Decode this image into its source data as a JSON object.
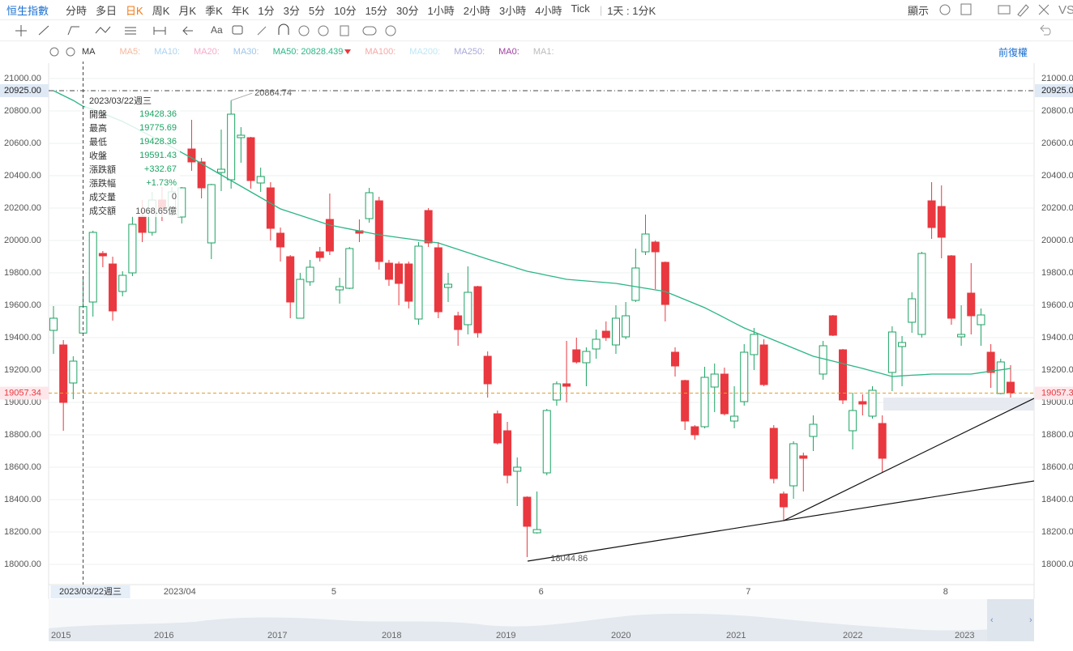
{
  "toolbar": {
    "symbol": "恒生指數",
    "periods": [
      "分時",
      "多日",
      "日K",
      "周K",
      "月K",
      "季K",
      "年K",
      "1分",
      "3分",
      "5分",
      "10分",
      "15分",
      "30分",
      "1小時",
      "2小時",
      "3小時",
      "4小時",
      "Tick"
    ],
    "selected_period": "日K",
    "interval": "1天 : 1分K",
    "display": "顯示",
    "compare": "VS",
    "text_tool": "Aa"
  },
  "indicator_label": "MA",
  "adjust": "前復權",
  "tooltip": {
    "labels": [
      "開盤",
      "最高",
      "最低",
      "收盤",
      "漲跌額",
      "漲跌幅",
      "成交量",
      "成交額"
    ],
    "change": "+332.67",
    "change_pct": "+1.73%",
    "volume": 0,
    "turnover": "1068.65億"
  },
  "navigator": {
    "years": [
      "2015",
      "2016",
      "2017",
      "2018",
      "2019",
      "2020",
      "2021",
      "2022",
      "2023"
    ]
  },
  "chart_data": {
    "type": "candlestick",
    "up_color": "#1ca363",
    "down_color": "#e9383f",
    "categories": [
      null,
      null,
      null,
      "2023/03/22週三",
      null,
      null,
      null,
      null,
      null,
      null,
      null,
      "2023/04",
      null,
      null,
      null,
      null,
      null,
      null,
      null,
      null,
      null,
      null,
      null,
      null,
      null,
      null,
      null,
      null,
      "5",
      null,
      null,
      null,
      null,
      null,
      null,
      null,
      null,
      null,
      null,
      null,
      null,
      null,
      null,
      null,
      null,
      null,
      null,
      null,
      null,
      "6",
      null,
      null,
      null,
      null,
      null,
      null,
      null,
      null,
      null,
      null,
      null,
      null,
      null,
      null,
      null,
      null,
      null,
      null,
      null,
      null,
      "7",
      null,
      null,
      null,
      null,
      null,
      null,
      null,
      null,
      null,
      null,
      null,
      null,
      null,
      null,
      null,
      null,
      null,
      null,
      null,
      "8",
      null,
      null,
      null,
      null,
      null,
      null,
      null
    ],
    "open": [
      19445,
      19355,
      19120,
      19428.36,
      19620,
      19920,
      19855,
      19685,
      19800,
      20150,
      20050,
      20250,
      20200,
      20145,
      20565,
      20485,
      19985,
      20420,
      20375,
      20635,
      20635,
      20355,
      20325,
      20045,
      19900,
      19520,
      19745,
      19930,
      20130,
      19695,
      19705,
      20060,
      20135,
      20245,
      19860,
      19855,
      19855,
      19515,
      20185,
      19955,
      19710,
      19535,
      19480,
      19715,
      19285,
      18930,
      18825,
      18575,
      18415,
      18195,
      18565,
      19015,
      19115,
      19325,
      19245,
      19330,
      19440,
      19355,
      19405,
      19630,
      19930,
      19990,
      19865,
      19310,
      19135,
      18850,
      18850,
      19095,
      19175,
      18885,
      19005,
      19295,
      19355,
      18840,
      18435,
      18485,
      18670,
      18790,
      19175,
      19535,
      19325,
      18825,
      19005,
      18915,
      18870,
      19185,
      19345,
      19495,
      19420,
      20245,
      20210,
      19905,
      19405,
      19675,
      19480,
      19310,
      19055,
      19125
    ],
    "high": [
      19595,
      19385,
      19285,
      19775.69,
      20060,
      19935,
      19900,
      19810,
      20150,
      20250,
      20300,
      20330,
      20330,
      20330,
      20745,
      20510,
      20350,
      20685,
      20864.74,
      20700,
      20640,
      20450,
      20360,
      20080,
      19910,
      19800,
      19880,
      19960,
      20290,
      19770,
      19960,
      20130,
      20325,
      20270,
      19880,
      19870,
      19870,
      19990,
      20200,
      19990,
      19800,
      19560,
      19840,
      19720,
      19315,
      18950,
      18880,
      18660,
      18420,
      18450,
      18960,
      19130,
      19380,
      19400,
      19340,
      19450,
      19500,
      19600,
      19620,
      19950,
      20160,
      20000,
      19870,
      19340,
      19140,
      18860,
      19220,
      19240,
      19215,
      19100,
      19360,
      19460,
      19390,
      18860,
      18450,
      18760,
      18690,
      18920,
      19380,
      19540,
      19330,
      19060,
      19050,
      19100,
      18920,
      19470,
      19410,
      19680,
      19930,
      20360,
      20340,
      19910,
      19600,
      19860,
      19580,
      19360,
      19270,
      19230
    ],
    "low": [
      19300,
      18825,
      19020,
      19428.36,
      19530,
      19835,
      19505,
      19655,
      19780,
      19990,
      20030,
      20120,
      20150,
      20105,
      20430,
      20260,
      19885,
      20305,
      20320,
      20480,
      20320,
      20300,
      20000,
      19870,
      19520,
      19520,
      19720,
      19870,
      19910,
      19610,
      19700,
      19990,
      20110,
      19820,
      19720,
      19600,
      19580,
      19480,
      19960,
      19520,
      19620,
      19350,
      19420,
      19400,
      19030,
      18740,
      18500,
      18360,
      18044.86,
      18190,
      18550,
      18980,
      19000,
      19240,
      19100,
      19270,
      19380,
      19300,
      19390,
      19620,
      19910,
      19700,
      19500,
      19160,
      18830,
      18770,
      18840,
      18940,
      18920,
      18840,
      18980,
      19200,
      19100,
      18500,
      18270,
      18405,
      18450,
      18700,
      19140,
      19410,
      18990,
      18710,
      18920,
      18900,
      18570,
      19070,
      19100,
      19430,
      19400,
      20010,
      19890,
      19480,
      19350,
      19420,
      19350,
      19090,
      19050,
      19030
    ],
    "close": [
      19520,
      19000,
      19255,
      19591.43,
      20050,
      19905,
      19565,
      19785,
      20100,
      20050,
      20250,
      20200,
      20300,
      20325,
      20485,
      20325,
      20345,
      20440,
      20780,
      20650,
      20370,
      20395,
      20075,
      19960,
      19620,
      19760,
      19835,
      19895,
      19935,
      19715,
      19950,
      20045,
      20295,
      19870,
      19760,
      19735,
      19625,
      19965,
      19985,
      19560,
      19730,
      19450,
      19680,
      19430,
      19115,
      18750,
      18550,
      18600,
      18235,
      18215,
      18950,
      19115,
      19100,
      19250,
      19315,
      19390,
      19400,
      19520,
      19535,
      19830,
      20040,
      19930,
      19605,
      19225,
      18885,
      18800,
      19155,
      19175,
      18930,
      18915,
      19310,
      19420,
      19110,
      18530,
      18355,
      18745,
      18655,
      18865,
      19350,
      19415,
      19015,
      18950,
      18990,
      19075,
      18655,
      19435,
      19370,
      19640,
      19920,
      20080,
      20020,
      19520,
      19420,
      19535,
      19540,
      19185,
      19250,
      19057.34
    ],
    "overlays": [
      {
        "name": "MA5:",
        "color": "#f7b79c"
      },
      {
        "name": "MA10:",
        "color": "#a9d3ef"
      },
      {
        "name": "MA20:",
        "color": "#f5a9c9"
      },
      {
        "name": "MA30:",
        "color": "#9ec5e8"
      },
      {
        "name": "MA50:",
        "color": "#2bb685",
        "values": [
          20925,
          20895,
          20865,
          20828.439,
          20810,
          20785,
          20760,
          20735,
          20704,
          20672,
          20641,
          20610,
          20577,
          20543,
          20510,
          20475,
          20440,
          20405,
          20370,
          20335,
          20300,
          20265,
          20230,
          20195,
          20175,
          20155,
          20135,
          20115,
          20095,
          20083,
          20071,
          20059,
          20047,
          20035,
          20027,
          20018,
          20010,
          20002,
          19993,
          19985,
          19965,
          19945,
          19925,
          19905,
          19885,
          19866,
          19848,
          19829,
          19810,
          19798,
          19785,
          19773,
          19760,
          19755,
          19750,
          19745,
          19740,
          19735,
          19725,
          19715,
          19705,
          19695,
          19685,
          19660,
          19635,
          19610,
          19585,
          19554,
          19523,
          19491,
          19460,
          19435,
          19410,
          19385,
          19360,
          19335,
          19310,
          19285,
          19270,
          19255,
          19240,
          19225,
          19210,
          19193,
          19177,
          19160,
          19164,
          19168,
          19171,
          19175,
          19175,
          19175,
          19175,
          19175,
          19184,
          19193,
          19201,
          19210
        ]
      },
      {
        "name": "MA100:",
        "color": "#f6a7a7"
      },
      {
        "name": "MA200:",
        "color": "#bde7f5"
      },
      {
        "name": "MA250:",
        "color": "#a8a8d8"
      },
      {
        "name": "MA0:",
        "color": "#a040a0"
      },
      {
        "name": "MA1:",
        "color": "#bbbbbb"
      }
    ],
    "crosshair": {
      "category": "2023/03/22週三",
      "price": {
        "value": 20925,
        "label": "20925.00"
      }
    },
    "ylim": [
      17875,
      21060
    ],
    "yticks": [
      {
        "value": 18000,
        "label": "18000.00"
      },
      {
        "value": 18200,
        "label": "18200.00"
      },
      {
        "value": 18400,
        "label": "18400.00"
      },
      {
        "value": 18600,
        "label": "18600.00"
      },
      {
        "value": 18800,
        "label": "18800.00"
      },
      {
        "value": 19000,
        "label": "19000.00"
      },
      {
        "value": 19200,
        "label": "19200.00"
      },
      {
        "value": 19400,
        "label": "19400.00"
      },
      {
        "value": 19600,
        "label": "19600.00"
      },
      {
        "value": 19800,
        "label": "19800.00"
      },
      {
        "value": 20000,
        "label": "20000.00"
      },
      {
        "value": 20200,
        "label": "20200.00"
      },
      {
        "value": 20400,
        "label": "20400.00"
      },
      {
        "value": 20600,
        "label": "20600.00"
      },
      {
        "value": 20800,
        "label": "20800.00"
      },
      {
        "value": 21000,
        "label": "21000.00"
      }
    ],
    "grid": true
  }
}
